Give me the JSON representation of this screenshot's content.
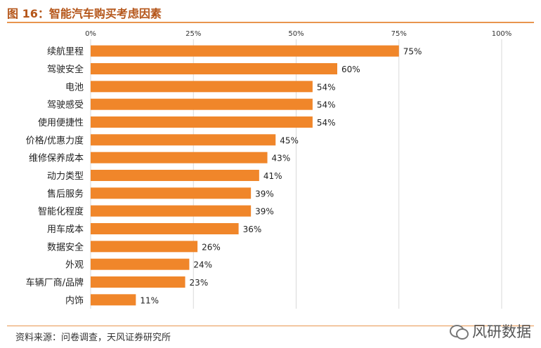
{
  "title": "图 16：智能汽车购买考虑因素",
  "source_note": "资料来源：问卷调查，天风证券研究所",
  "watermark": {
    "text": "风研数据",
    "icon": "wechat-icon"
  },
  "colors": {
    "bar": "#F0862A",
    "accent": "#B5561A",
    "rule": "#E8954E",
    "grid": "#D9D9D9"
  },
  "chart_data": {
    "type": "bar",
    "orientation": "horizontal",
    "categories": [
      "续航里程",
      "驾驶安全",
      "电池",
      "驾驶感受",
      "使用便捷性",
      "价格/优惠力度",
      "维修保养成本",
      "动力类型",
      "售后服务",
      "智能化程度",
      "用车成本",
      "数据安全",
      "外观",
      "车辆厂商/品牌",
      "内饰"
    ],
    "values": [
      75,
      60,
      54,
      54,
      54,
      45,
      43,
      41,
      39,
      39,
      36,
      26,
      24,
      23,
      11
    ],
    "value_labels": [
      "75%",
      "60%",
      "54%",
      "54%",
      "54%",
      "45%",
      "43%",
      "41%",
      "39%",
      "39%",
      "36%",
      "26%",
      "24%",
      "23%",
      "11%"
    ],
    "x_ticks": [
      0,
      25,
      50,
      75,
      100
    ],
    "x_tick_labels": [
      "0%",
      "25%",
      "50%",
      "75%",
      "100%"
    ],
    "xlim": [
      0,
      100
    ],
    "x_axis_position": "top",
    "grid": true,
    "legend": "none"
  }
}
